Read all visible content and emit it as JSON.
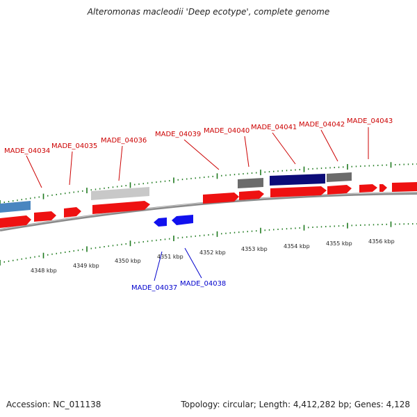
{
  "title": "Alteromonas macleodii 'Deep ecotype', complete genome",
  "footer": {
    "accession": "Accession: NC_011138",
    "topology": "Topology: circular; Length: 4,412,282 bp; Genes: 4,128"
  },
  "colors": {
    "forward_gene": "#ff0000",
    "reverse_gene": "#0000ee",
    "tick": "#1e7a1e",
    "backbone": "#8a8a8a",
    "label_forward": "#cc0000",
    "label_reverse": "#0000cc"
  },
  "gene_labels_top": [
    "MADE_04034",
    "MADE_04035",
    "MADE_04036",
    "MADE_04039",
    "MADE_04040",
    "MADE_04041",
    "MADE_04042",
    "MADE_04043"
  ],
  "gene_labels_bottom": [
    "MADE_04037",
    "MADE_04038"
  ],
  "kbp_labels": [
    "4348 kbp",
    "4349 kbp",
    "4350 kbp",
    "4351 kbp",
    "4352 kbp",
    "4353 kbp",
    "4354 kbp",
    "4355 kbp",
    "4356 kbp"
  ]
}
